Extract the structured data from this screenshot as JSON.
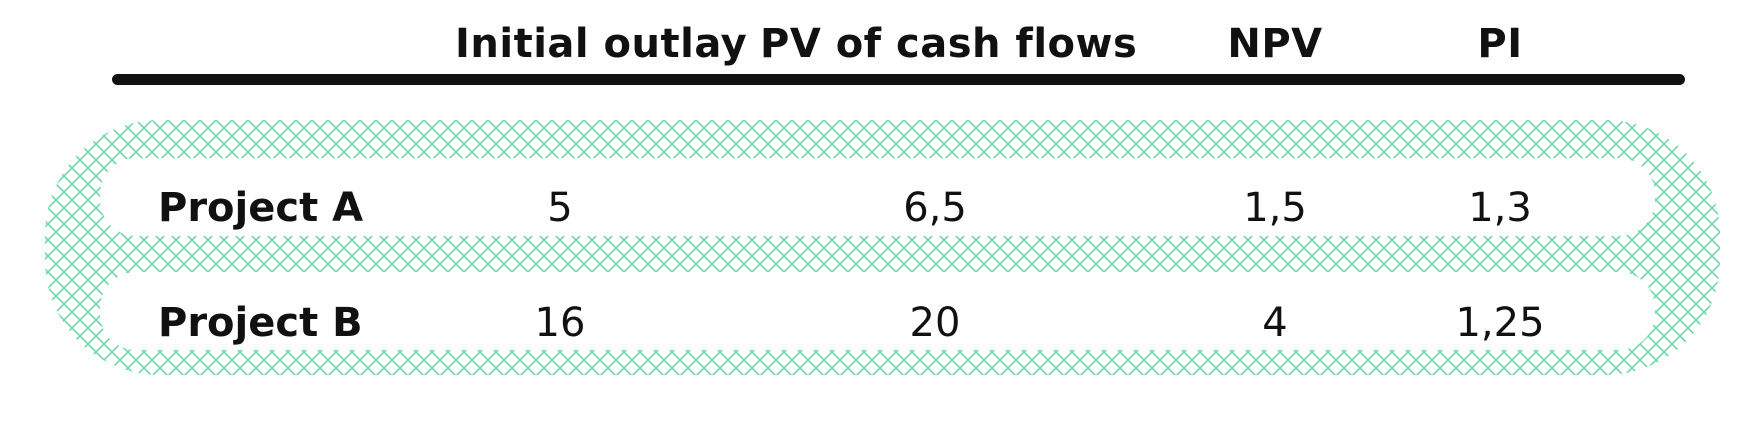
{
  "table": {
    "columns": [
      "Initial outlay",
      "PV of cash flows",
      "NPV",
      "PI"
    ],
    "rows": [
      {
        "label": "Project A",
        "values": [
          "5",
          "6,5",
          "1,5",
          "1,3"
        ]
      },
      {
        "label": "Project B",
        "values": [
          "16",
          "20",
          "4",
          "1,25"
        ]
      }
    ]
  },
  "colors": {
    "highlight_hatch": "#6fd6a8",
    "rule": "#111111",
    "text": "#111111"
  }
}
